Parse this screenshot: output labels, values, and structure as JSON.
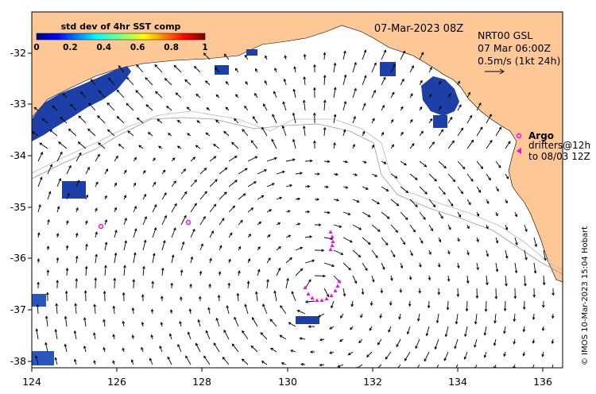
{
  "map": {
    "date_label": "07-Mar-2023 08Z",
    "product_label": "NRT00 GSL",
    "analysis_time": "07 Mar 06:00Z",
    "velocity_scale": "0.5m/s (1kt 24h)",
    "credit": "© IMOS 10-Mar-2023 15:04 Hobart",
    "legend": {
      "argo_label": "Argo",
      "drifters_label": "drifters@12h",
      "drifters_range": "to 08/03 12Z"
    },
    "colorbar": {
      "title": "std dev of 4hr SST comp",
      "ticks": [
        "0",
        "0.2",
        "0.4",
        "0.6",
        "0.8",
        "1"
      ],
      "min": 0,
      "max": 1
    },
    "axes": {
      "lon_ticks": [
        "124",
        "126",
        "128",
        "130",
        "132",
        "134",
        "136"
      ],
      "lat_ticks": [
        "-32",
        "-33",
        "-34",
        "-35",
        "-36",
        "-37",
        "-38"
      ]
    },
    "colors": {
      "land": "#fdc896",
      "sst_patch": "#1a3a9c",
      "drifter": "#ff00ff",
      "arrow": "#000000",
      "contour": "#9a9a9a"
    }
  }
}
